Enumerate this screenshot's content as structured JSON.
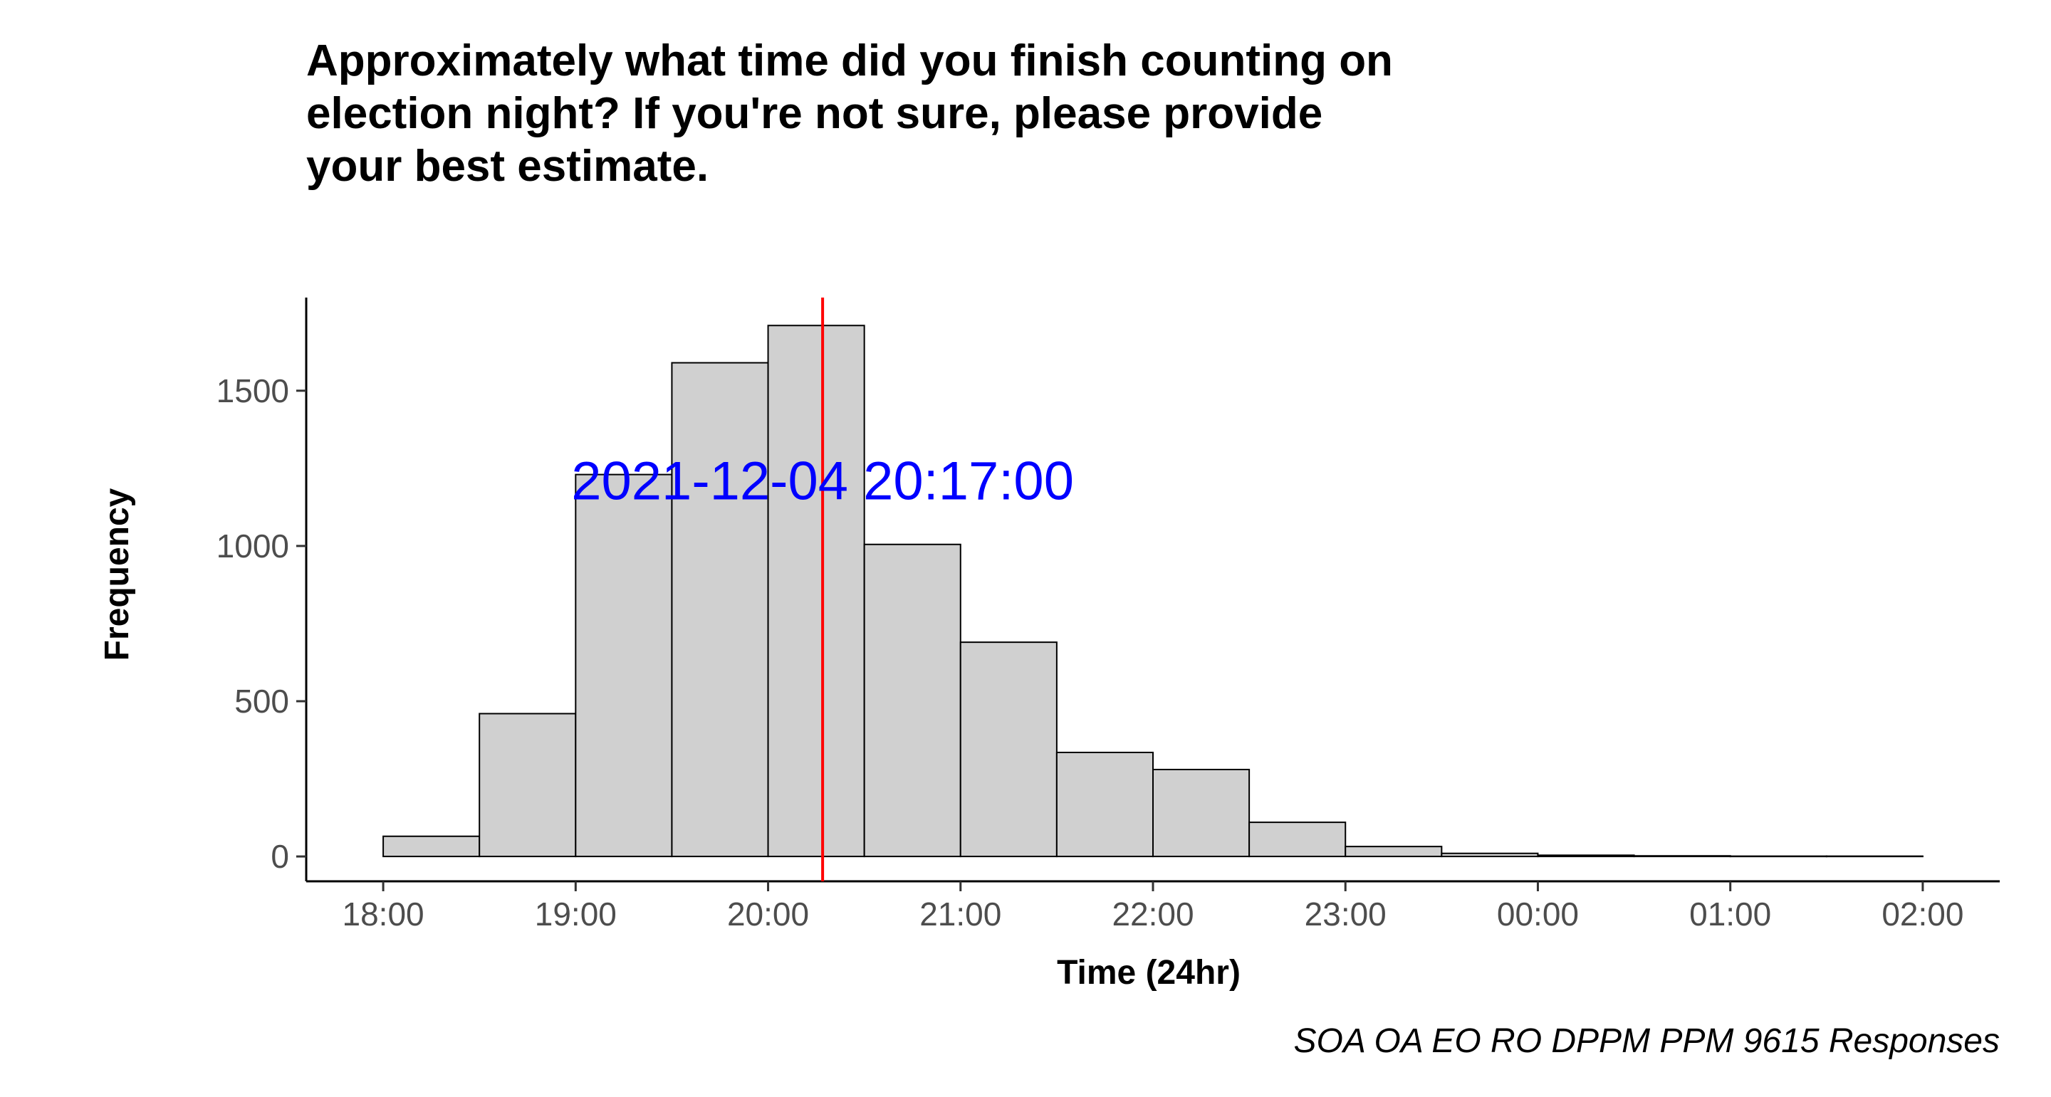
{
  "chart_data": {
    "type": "bar",
    "title_lines": [
      "Approximately what time did you finish counting on",
      "election night? If you're not sure, please provide",
      "your best estimate."
    ],
    "xlabel": "Time (24hr)",
    "ylabel": "Frequency",
    "caption": "SOA OA EO RO DPPM PPM 9615 Responses",
    "x_tick_labels": [
      "18:00",
      "19:00",
      "20:00",
      "21:00",
      "22:00",
      "23:00",
      "00:00",
      "01:00",
      "02:00"
    ],
    "y_ticks": [
      0,
      500,
      1000,
      1500
    ],
    "ylim": [
      -80,
      1800
    ],
    "xlim": [
      "17:36",
      "02:24"
    ],
    "bin_width_hours": 0.5,
    "bins": [
      {
        "start": "18:00",
        "value": 65
      },
      {
        "start": "18:30",
        "value": 460
      },
      {
        "start": "19:00",
        "value": 1230
      },
      {
        "start": "19:30",
        "value": 1590
      },
      {
        "start": "20:00",
        "value": 1710
      },
      {
        "start": "20:30",
        "value": 1005
      },
      {
        "start": "21:00",
        "value": 690
      },
      {
        "start": "21:30",
        "value": 335
      },
      {
        "start": "22:00",
        "value": 280
      },
      {
        "start": "22:30",
        "value": 110
      },
      {
        "start": "23:00",
        "value": 32
      },
      {
        "start": "23:30",
        "value": 10
      },
      {
        "start": "00:00",
        "value": 4
      },
      {
        "start": "00:30",
        "value": 2
      },
      {
        "start": "01:00",
        "value": 1
      },
      {
        "start": "01:30",
        "value": 1
      }
    ],
    "vline": {
      "x": "20:17",
      "color": "#ff0000"
    },
    "annotation": {
      "text": "2021-12-04 20:17:00",
      "x": "20:17",
      "y": 1210,
      "color": "#0000ff"
    },
    "bar_fill": "#d0d0d0",
    "bar_stroke": "#000000",
    "grid": false
  }
}
